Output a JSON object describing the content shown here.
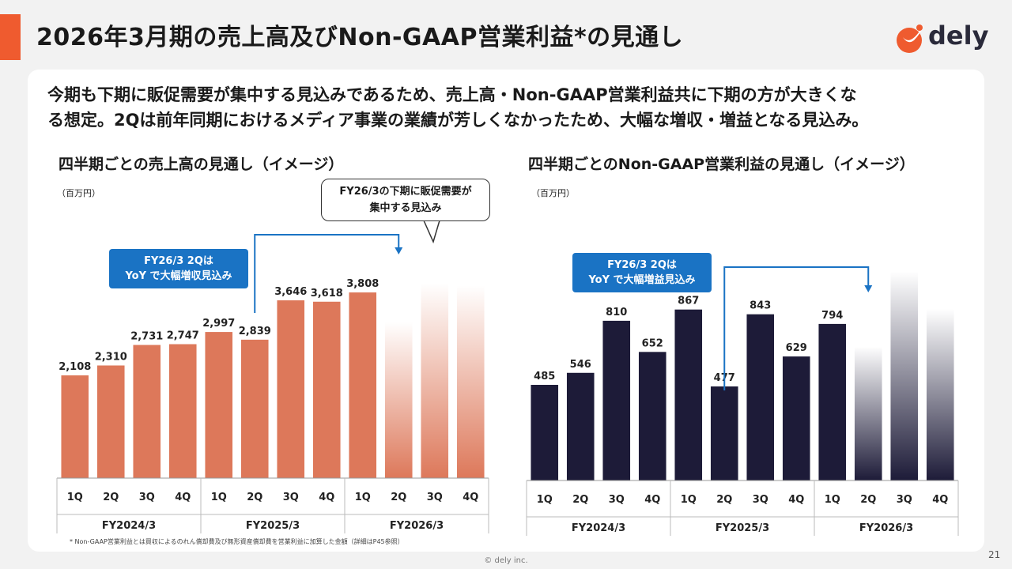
{
  "header": {
    "title": "2026年3月期の売上高及びNon-GAAP営業利益*の見通し",
    "accent_color": "#ef5b2f",
    "logo_text": "dely",
    "logo_icon": "dely-logo-icon"
  },
  "lead": {
    "line1": "今期も下期に販促需要が集中する見込みであるため、売上高・Non-GAAP営業利益共に下期の方が大きくな",
    "line2": "る想定。2Qは前年同期におけるメディア事業の業績が芳しくなかったため、大幅な増収・増益となる見込み。"
  },
  "revenue": {
    "title": "四半期ごとの売上高の見通し（イメージ）",
    "unit": "（百万円）",
    "callout_line1": "FY26/3 2Qは",
    "callout_line2": "YoY で大幅増収見込み",
    "bubble_line1": "FY26/3の下期に販促需要が",
    "bubble_line2": "集中する見込み",
    "color": "#dd785a"
  },
  "profit": {
    "title": "四半期ごとのNon-GAAP営業利益の見通し（イメージ）",
    "unit": "（百万円）",
    "callout_line1": "FY26/3 2Qは",
    "callout_line2": "YoY で大幅増益見込み",
    "color": "#1d1b38"
  },
  "chart_data": [
    {
      "type": "bar",
      "title": "四半期ごとの売上高の見通し（イメージ）",
      "unit": "（百万円）",
      "categories": [
        "1Q",
        "2Q",
        "3Q",
        "4Q",
        "1Q",
        "2Q",
        "3Q",
        "4Q",
        "1Q",
        "2Q",
        "3Q",
        "4Q"
      ],
      "groups": [
        "FY2024/3",
        "FY2025/3",
        "FY2026/3"
      ],
      "values": [
        2108,
        2310,
        2731,
        2747,
        2997,
        2839,
        3646,
        3618,
        3808,
        null,
        null,
        null
      ],
      "labels": [
        "2,108",
        "2,310",
        "2,731",
        "2,747",
        "2,997",
        "2,839",
        "3,646",
        "3,618",
        "3,808",
        "",
        "",
        ""
      ],
      "forecast_levels": [
        3200,
        4000,
        3950
      ],
      "color": "#dd785a"
    },
    {
      "type": "bar",
      "title": "四半期ごとのNon-GAAP営業利益の見通し（イメージ）",
      "unit": "（百万円）",
      "categories": [
        "1Q",
        "2Q",
        "3Q",
        "4Q",
        "1Q",
        "2Q",
        "3Q",
        "4Q",
        "1Q",
        "2Q",
        "3Q",
        "4Q"
      ],
      "groups": [
        "FY2024/3",
        "FY2025/3",
        "FY2026/3"
      ],
      "values": [
        485,
        546,
        810,
        652,
        867,
        477,
        843,
        629,
        794,
        null,
        null,
        null
      ],
      "labels": [
        "485",
        "546",
        "810",
        "652",
        "867",
        "477",
        "843",
        "629",
        "794",
        "",
        "",
        ""
      ],
      "forecast_levels": [
        680,
        1060,
        870
      ],
      "color": "#1d1b38"
    }
  ],
  "footnote": "* Non-GAAP営業利益とは買収によるのれん償却費及び無形資産償却費を営業利益に加算した金額（詳細はP45参照）",
  "copyright": "© dely inc.",
  "page_number": "21"
}
